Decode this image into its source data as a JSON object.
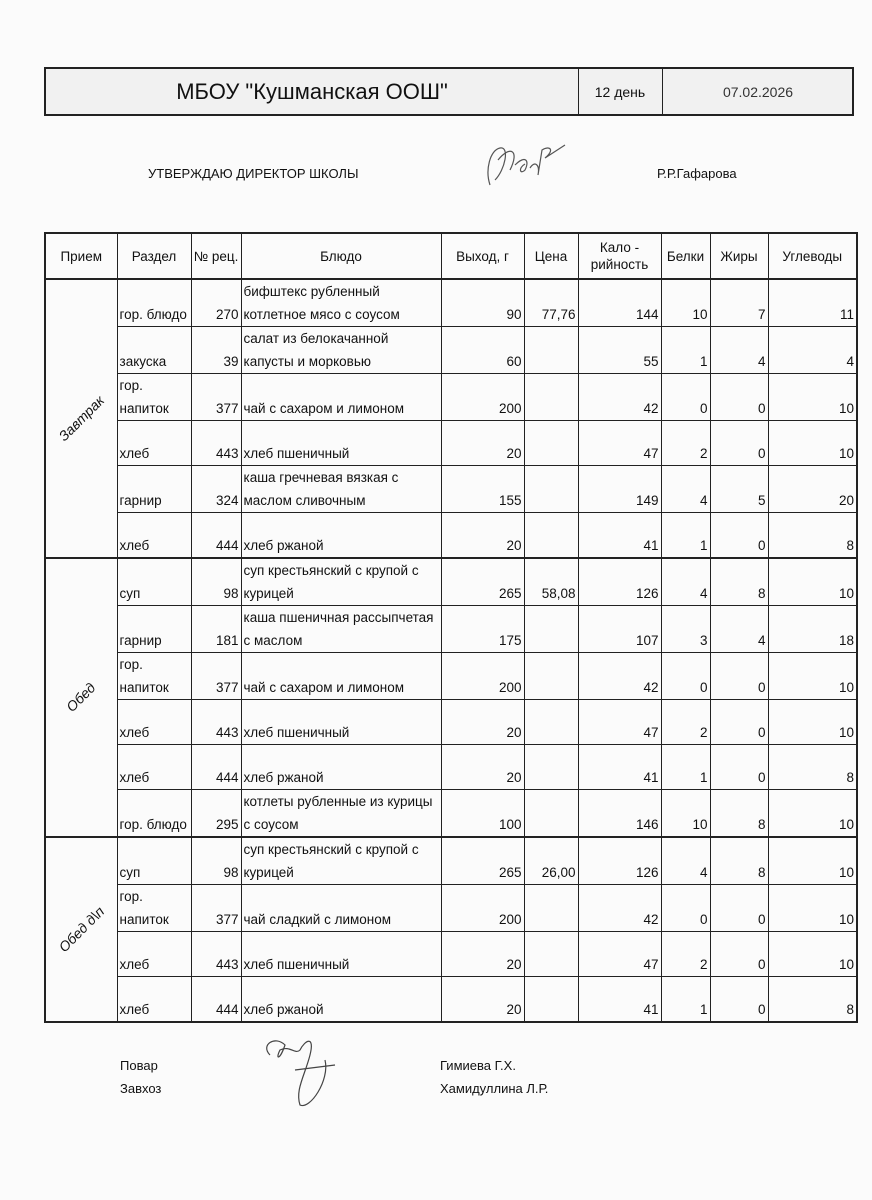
{
  "header": {
    "school": "МБОУ \"Кушманская ООШ\"",
    "day": "12 день",
    "date": "07.02.2026"
  },
  "approval": {
    "label": "УТВЕРЖДАЮ ДИРЕКТОР  ШКОЛЫ",
    "signature": "Р.Гар",
    "director": "Р.Р.Гафарова"
  },
  "columns": [
    "Прием",
    "Раздел",
    "№ рец.",
    "Блюдо",
    "Выход, г",
    "Цена",
    "Кало - рийность",
    "Белки",
    "Жиры",
    "Углеводы"
  ],
  "meals": [
    {
      "name": "Завтрак",
      "rows": [
        {
          "section": "гор. блюдо",
          "recipe": "270",
          "dish": "бифштекс рубленный котлетное мясо с соусом",
          "yield": "90",
          "price": "77,76",
          "kcal": "144",
          "protein": "10",
          "fat": "7",
          "carbs": "11"
        },
        {
          "section": "закуска",
          "recipe": "39",
          "dish": "салат из белокачанной капусты и морковью",
          "yield": "60",
          "price": "",
          "kcal": "55",
          "protein": "1",
          "fat": "4",
          "carbs": "4"
        },
        {
          "section": "гор. напиток",
          "recipe": "377",
          "dish": "чай с сахаром и лимоном",
          "yield": "200",
          "price": "",
          "kcal": "42",
          "protein": "0",
          "fat": "0",
          "carbs": "10"
        },
        {
          "section": "хлеб",
          "recipe": "443",
          "dish": "хлеб пшеничный",
          "yield": "20",
          "price": "",
          "kcal": "47",
          "protein": "2",
          "fat": "0",
          "carbs": "10"
        },
        {
          "section": "гарнир",
          "recipe": "324",
          "dish": "каша гречневая вязкая с маслом сливочным",
          "yield": "155",
          "price": "",
          "kcal": "149",
          "protein": "4",
          "fat": "5",
          "carbs": "20"
        },
        {
          "section": "хлеб",
          "recipe": "444",
          "dish": "хлеб ржаной",
          "yield": "20",
          "price": "",
          "kcal": "41",
          "protein": "1",
          "fat": "0",
          "carbs": "8"
        }
      ]
    },
    {
      "name": "Обед",
      "rows": [
        {
          "section": "суп",
          "recipe": "98",
          "dish": "суп крестьянский с крупой с курицей",
          "yield": "265",
          "price": "58,08",
          "kcal": "126",
          "protein": "4",
          "fat": "8",
          "carbs": "10"
        },
        {
          "section": "гарнир",
          "recipe": "181",
          "dish": "каша пшеничная рассыпчетая с маслом",
          "yield": "175",
          "price": "",
          "kcal": "107",
          "protein": "3",
          "fat": "4",
          "carbs": "18"
        },
        {
          "section": "гор. напиток",
          "recipe": "377",
          "dish": "чай с сахаром и лимоном",
          "yield": "200",
          "price": "",
          "kcal": "42",
          "protein": "0",
          "fat": "0",
          "carbs": "10"
        },
        {
          "section": "хлеб",
          "recipe": "443",
          "dish": "хлеб пшеничный",
          "yield": "20",
          "price": "",
          "kcal": "47",
          "protein": "2",
          "fat": "0",
          "carbs": "10"
        },
        {
          "section": "хлеб",
          "recipe": "444",
          "dish": "хлеб ржаной",
          "yield": "20",
          "price": "",
          "kcal": "41",
          "protein": "1",
          "fat": "0",
          "carbs": "8"
        },
        {
          "section": "гор. блюдо",
          "recipe": "295",
          "dish": "котлеты рубленные из курицы с соусом",
          "yield": "100",
          "price": "",
          "kcal": "146",
          "protein": "10",
          "fat": "8",
          "carbs": "10"
        }
      ]
    },
    {
      "name": "Обед д\\п",
      "rows": [
        {
          "section": "суп",
          "recipe": "98",
          "dish": "суп крестьянский с крупой с курицей",
          "yield": "265",
          "price": "26,00",
          "kcal": "126",
          "protein": "4",
          "fat": "8",
          "carbs": "10"
        },
        {
          "section": "гор. напиток",
          "recipe": "377",
          "dish": "чай сладкий с лимоном",
          "yield": "200",
          "price": "",
          "kcal": "42",
          "protein": "0",
          "fat": "0",
          "carbs": "10"
        },
        {
          "section": "хлеб",
          "recipe": "443",
          "dish": "хлеб пшеничный",
          "yield": "20",
          "price": "",
          "kcal": "47",
          "protein": "2",
          "fat": "0",
          "carbs": "10"
        },
        {
          "section": "хлеб",
          "recipe": "444",
          "dish": "хлеб ржаной",
          "yield": "20",
          "price": "",
          "kcal": "41",
          "protein": "1",
          "fat": "0",
          "carbs": "8"
        }
      ]
    }
  ],
  "footer": {
    "cook_label": "Повар",
    "cook_name": "Гимиева Г.Х.",
    "storekeeper_label": "Завхоз",
    "storekeeper_name": "Хамидуллина Л.Р."
  }
}
